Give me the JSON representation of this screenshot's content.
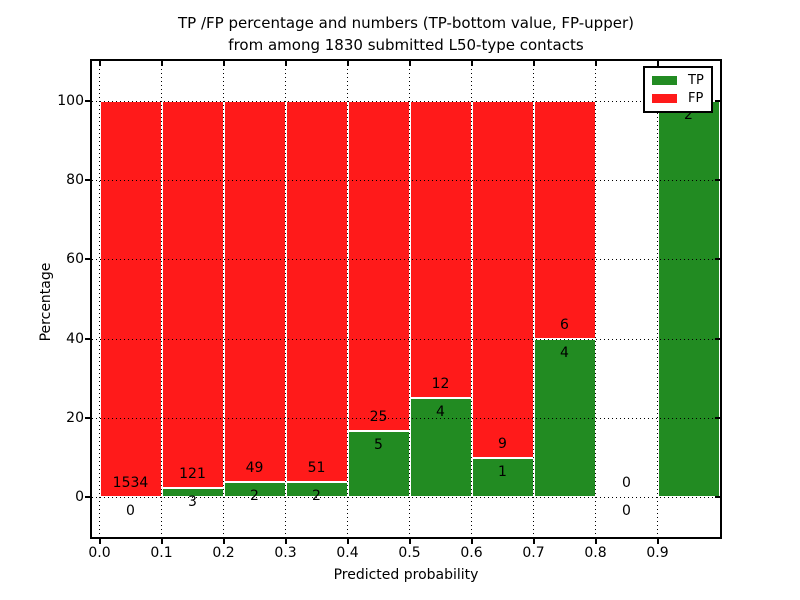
{
  "title": {
    "line1": "TP /FP percentage and numbers (TP-bottom value, FP-upper)",
    "line2": "from among 1830 submitted L50-type contacts"
  },
  "chart_data": {
    "type": "bar",
    "stacked": true,
    "title": "TP /FP percentage and numbers (TP-bottom value, FP-upper)\nfrom among 1830 submitted L50-type contacts",
    "xlabel": "Predicted probability",
    "ylabel": "Percentage",
    "ylim": [
      -10,
      110
    ],
    "xlim": [
      -0.012,
      1.0
    ],
    "grid": true,
    "xticks": [
      {
        "value": 0.0,
        "label": "0.0"
      },
      {
        "value": 0.1,
        "label": "0.1"
      },
      {
        "value": 0.2,
        "label": "0.2"
      },
      {
        "value": 0.3,
        "label": "0.3"
      },
      {
        "value": 0.4,
        "label": "0.4"
      },
      {
        "value": 0.5,
        "label": "0.5"
      },
      {
        "value": 0.6,
        "label": "0.6"
      },
      {
        "value": 0.7,
        "label": "0.7"
      },
      {
        "value": 0.8,
        "label": "0.8"
      },
      {
        "value": 0.9,
        "label": "0.9"
      }
    ],
    "yticks": [
      {
        "value": 0,
        "label": "0"
      },
      {
        "value": 20,
        "label": "20"
      },
      {
        "value": 40,
        "label": "40"
      },
      {
        "value": 60,
        "label": "60"
      },
      {
        "value": 80,
        "label": "80"
      },
      {
        "value": 100,
        "label": "100"
      }
    ],
    "colors": {
      "tp": "#228b22",
      "fp": "#ff1a1a",
      "edge": "#ffffff",
      "grid": "#000000"
    },
    "legend": {
      "position": "upper right",
      "entries": [
        {
          "series": "tp",
          "label": "TP"
        },
        {
          "series": "fp",
          "label": "FP"
        }
      ]
    },
    "bins": [
      {
        "x0": 0.0,
        "x1": 0.1,
        "tp": 0,
        "fp": 1534
      },
      {
        "x0": 0.1,
        "x1": 0.2,
        "tp": 3,
        "fp": 121
      },
      {
        "x0": 0.2,
        "x1": 0.3,
        "tp": 2,
        "fp": 49
      },
      {
        "x0": 0.3,
        "x1": 0.4,
        "tp": 2,
        "fp": 51
      },
      {
        "x0": 0.4,
        "x1": 0.5,
        "tp": 5,
        "fp": 25
      },
      {
        "x0": 0.5,
        "x1": 0.6,
        "tp": 4,
        "fp": 12
      },
      {
        "x0": 0.6,
        "x1": 0.7,
        "tp": 1,
        "fp": 9
      },
      {
        "x0": 0.7,
        "x1": 0.8,
        "tp": 4,
        "fp": 6
      },
      {
        "x0": 0.8,
        "x1": 0.9,
        "tp": 0,
        "fp": 0
      },
      {
        "x0": 0.9,
        "x1": 1.0,
        "tp": 2,
        "fp": 0
      }
    ]
  }
}
